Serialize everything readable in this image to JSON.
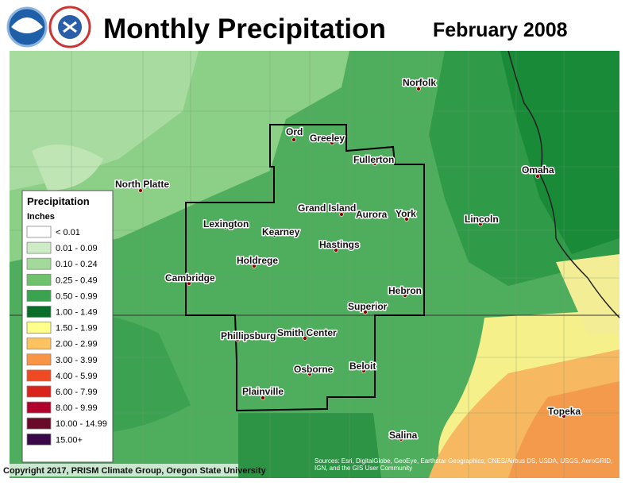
{
  "header": {
    "title": "Monthly Precipitation",
    "date": "February 2008"
  },
  "legend": {
    "title": "Precipitation",
    "units": "Inches",
    "items": [
      {
        "label": "< 0.01",
        "color": "#ffffff"
      },
      {
        "label": "0.01 - 0.09",
        "color": "#cdebc4"
      },
      {
        "label": "0.10 - 0.24",
        "color": "#a3d99a"
      },
      {
        "label": "0.25 - 0.49",
        "color": "#6fc16b"
      },
      {
        "label": "0.50 - 0.99",
        "color": "#3ba350"
      },
      {
        "label": "1.00 - 1.49",
        "color": "#0a6e2a"
      },
      {
        "label": "1.50 - 1.99",
        "color": "#ffff8c"
      },
      {
        "label": "2.00 - 2.99",
        "color": "#fdc360"
      },
      {
        "label": "3.00 - 3.99",
        "color": "#f99446"
      },
      {
        "label": "4.00 - 5.99",
        "color": "#f04a22"
      },
      {
        "label": "6.00 - 7.99",
        "color": "#d8241c"
      },
      {
        "label": "8.00 - 9.99",
        "color": "#b0022c"
      },
      {
        "label": "10.00 - 14.99",
        "color": "#6a0a2a"
      },
      {
        "label": "15.00+",
        "color": "#3a0848"
      }
    ]
  },
  "cities": [
    "Norfolk",
    "North Platte",
    "Ord",
    "Greeley",
    "Fullerton",
    "Omaha",
    "Grand Island",
    "Aurora",
    "York",
    "Lincoln",
    "Lexington",
    "Kearney",
    "Hastings",
    "Holdrege",
    "Cambridge",
    "Hebron",
    "Superior",
    "Phillipsburg",
    "Smith Center",
    "Osborne",
    "Beloit",
    "Plainville",
    "Salina",
    "Topeka"
  ],
  "footer": {
    "copyright": "Copyright 2017, PRISM Climate Group, Oregon State University",
    "attribution": "Sources: Esri, DigitalGlobe, GeoEye, Earthstar Geographics, CNES/Airbus DS, USDA, USGS, AeroGRID, IGN, and the GIS User Community"
  }
}
